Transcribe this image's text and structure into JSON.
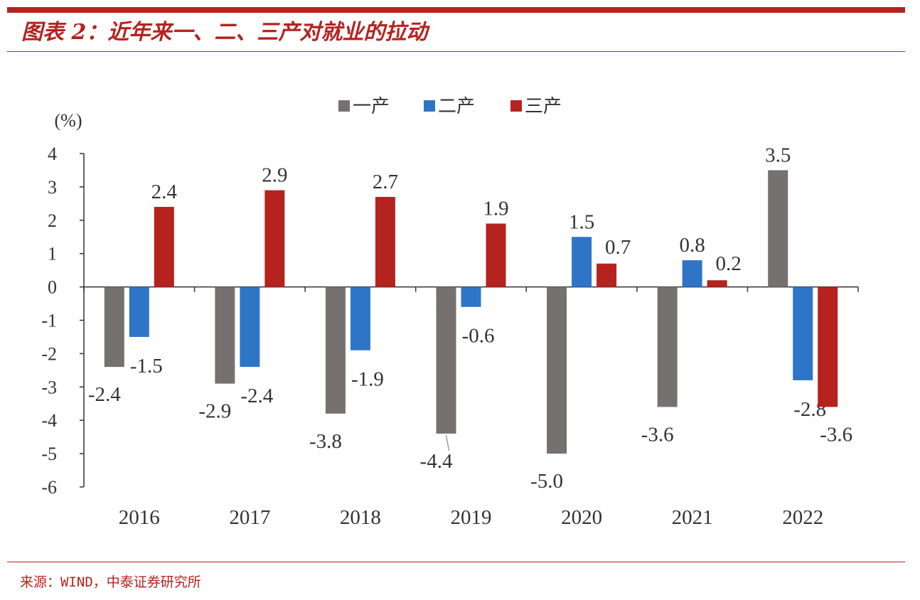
{
  "header": {
    "title": "图表 2：近年来一、二、三产对就业的拉动"
  },
  "footer": {
    "source": "来源：WIND，中泰证券研究所"
  },
  "chart_data": {
    "type": "bar",
    "title": "",
    "ylabel": "(%)",
    "xlabel": "",
    "categories": [
      "2016",
      "2017",
      "2018",
      "2019",
      "2020",
      "2021",
      "2022"
    ],
    "ylim": [
      -6,
      4
    ],
    "yticks": [
      4,
      3,
      2,
      1,
      0,
      -1,
      -2,
      -3,
      -4,
      -5,
      -6
    ],
    "legend_position": "top-center",
    "series": [
      {
        "name": "一产",
        "color": "#767171",
        "values": [
          -2.4,
          -2.9,
          -3.8,
          -4.4,
          -5.0,
          -3.6,
          3.5
        ],
        "labels": [
          "-2.4",
          "-2.9",
          "-3.8",
          "-4.4",
          "-5.0",
          "-3.6",
          "3.5"
        ]
      },
      {
        "name": "二产",
        "color": "#2e75c6",
        "values": [
          -1.5,
          -2.4,
          -1.9,
          -0.6,
          1.5,
          0.8,
          -2.8
        ],
        "labels": [
          "-1.5",
          "-2.4",
          "-1.9",
          "-0.6",
          "1.5",
          "0.8",
          "-2.8"
        ]
      },
      {
        "name": "三产",
        "color": "#b5231f",
        "values": [
          2.4,
          2.9,
          2.7,
          1.9,
          0.7,
          0.2,
          -3.6
        ],
        "labels": [
          "2.4",
          "2.9",
          "2.7",
          "1.9",
          "0.7",
          "0.2",
          "-3.6"
        ]
      }
    ]
  }
}
